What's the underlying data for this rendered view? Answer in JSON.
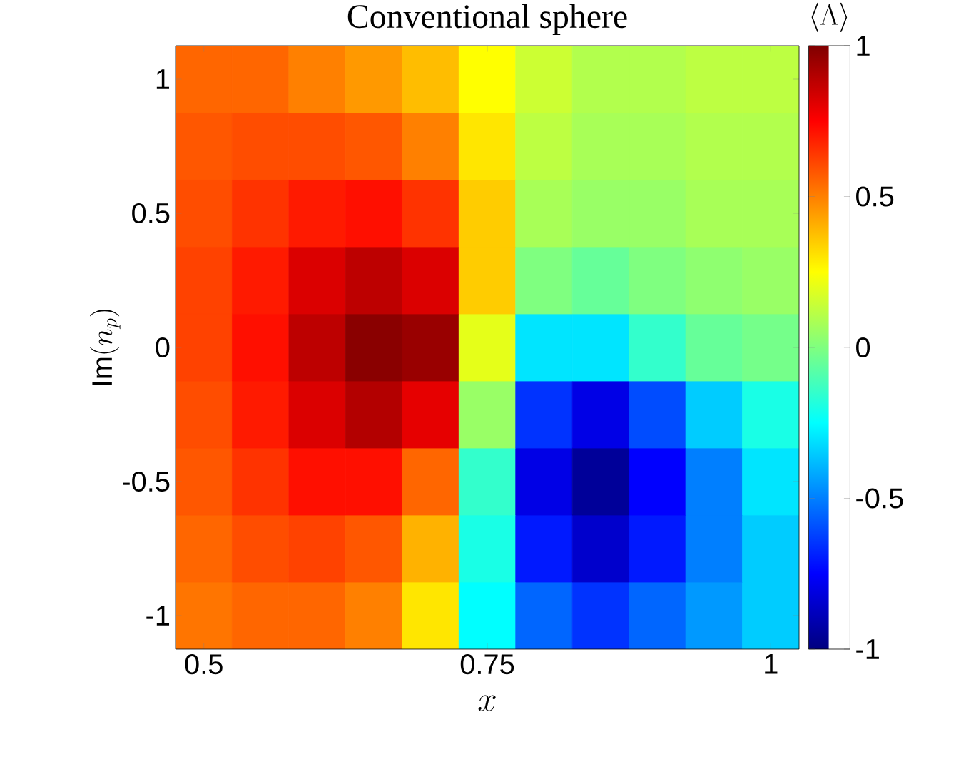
{
  "chart_data": {
    "type": "heatmap",
    "title": "Conventional sphere",
    "xlabel": "x",
    "ylabel": "\\mathrm{Im}(n_p)",
    "clabel": "\\langle\\Lambda\\rangle",
    "categories": [
      "0.5",
      null,
      null,
      null,
      null,
      "0.75",
      null,
      null,
      null,
      null,
      "1"
    ],
    "y_categories": [
      "1",
      null,
      "0.5",
      null,
      "0",
      null,
      "-0.5",
      null,
      "-1"
    ],
    "clim": [
      -1,
      1
    ],
    "cticks": [
      -1,
      -0.5,
      0,
      0.5,
      1
    ],
    "cells": [
      [
        0.55,
        0.55,
        0.5,
        0.45,
        0.38,
        0.25,
        0.15,
        0.1,
        0.1,
        0.12,
        0.12
      ],
      [
        0.58,
        0.6,
        0.6,
        0.58,
        0.5,
        0.3,
        0.12,
        0.08,
        0.08,
        0.1,
        0.1
      ],
      [
        0.6,
        0.65,
        0.7,
        0.72,
        0.65,
        0.35,
        0.08,
        0.05,
        0.05,
        0.08,
        0.08
      ],
      [
        0.62,
        0.7,
        0.82,
        0.88,
        0.82,
        0.35,
        0,
        -0.05,
        0,
        0.03,
        0.05
      ],
      [
        0.62,
        0.72,
        0.88,
        0.98,
        0.95,
        0.2,
        -0.3,
        -0.3,
        -0.15,
        -0.05,
        -0.02
      ],
      [
        0.6,
        0.7,
        0.82,
        0.9,
        0.8,
        0.05,
        -0.65,
        -0.8,
        -0.6,
        -0.35,
        -0.2
      ],
      [
        0.58,
        0.65,
        0.72,
        0.72,
        0.55,
        -0.15,
        -0.8,
        -0.95,
        -0.75,
        -0.5,
        -0.3
      ],
      [
        0.55,
        0.6,
        0.62,
        0.58,
        0.4,
        -0.2,
        -0.7,
        -0.85,
        -0.7,
        -0.5,
        -0.35
      ],
      [
        0.52,
        0.55,
        0.55,
        0.5,
        0.3,
        -0.25,
        -0.55,
        -0.65,
        -0.55,
        -0.45,
        -0.35
      ]
    ]
  }
}
